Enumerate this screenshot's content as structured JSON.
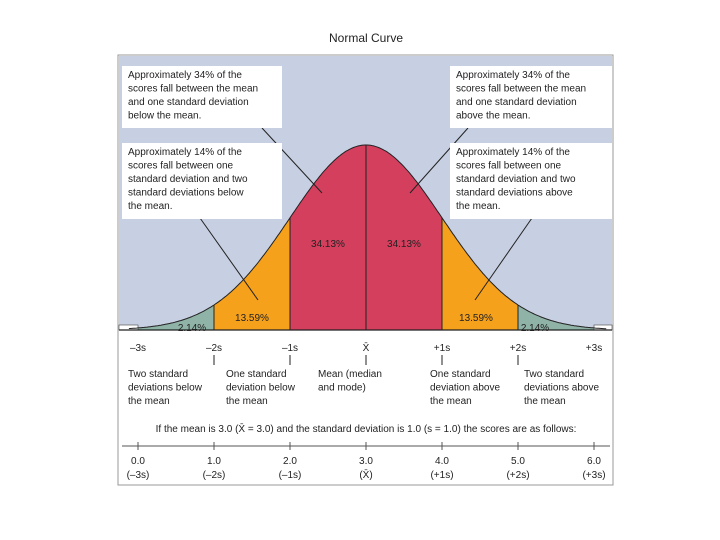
{
  "title": "Normal Curve",
  "callouts": [
    [
      "Approximately 34% of the",
      "scores fall between the mean",
      "and one standard deviation",
      "below the mean."
    ],
    [
      "Approximately 14% of the",
      "scores fall between one",
      "standard deviation and two",
      "standard deviations below",
      "the mean."
    ],
    [
      "Approximately 34% of the",
      "scores fall between the mean",
      "and one standard deviation",
      "above the mean."
    ],
    [
      "Approximately 14% of the",
      "scores fall between one",
      "standard deviation and two",
      "standard deviations above",
      "the mean."
    ]
  ],
  "percent_labels": [
    "2.14%",
    "13.59%",
    "34.13%",
    "34.13%",
    "13.59%",
    "2.14%"
  ],
  "axis_labels": [
    "–3s",
    "–2s",
    "–1s",
    "X̄",
    "+1s",
    "+2s",
    "+3s"
  ],
  "descriptions": [
    [
      "Two standard",
      "deviations below",
      "the mean"
    ],
    [
      "One standard",
      "deviation below",
      "the mean"
    ],
    [
      "Mean (median",
      "and mode)"
    ],
    [
      "One standard",
      "deviation above",
      "the mean"
    ],
    [
      "Two standard",
      "deviations above",
      "the mean"
    ]
  ],
  "note": "If the mean is 3.0 (X̄ = 3.0) and the standard deviation is 1.0 (s = 1.0) the scores are as follows:",
  "scores": [
    [
      "0.0",
      "(–3s)"
    ],
    [
      "1.0",
      "(–2s)"
    ],
    [
      "2.0",
      "(–1s)"
    ],
    [
      "3.0",
      "(X̄)"
    ],
    [
      "4.0",
      "(+1s)"
    ],
    [
      "5.0",
      "(+2s)"
    ],
    [
      "6.0",
      "(+3s)"
    ]
  ]
}
